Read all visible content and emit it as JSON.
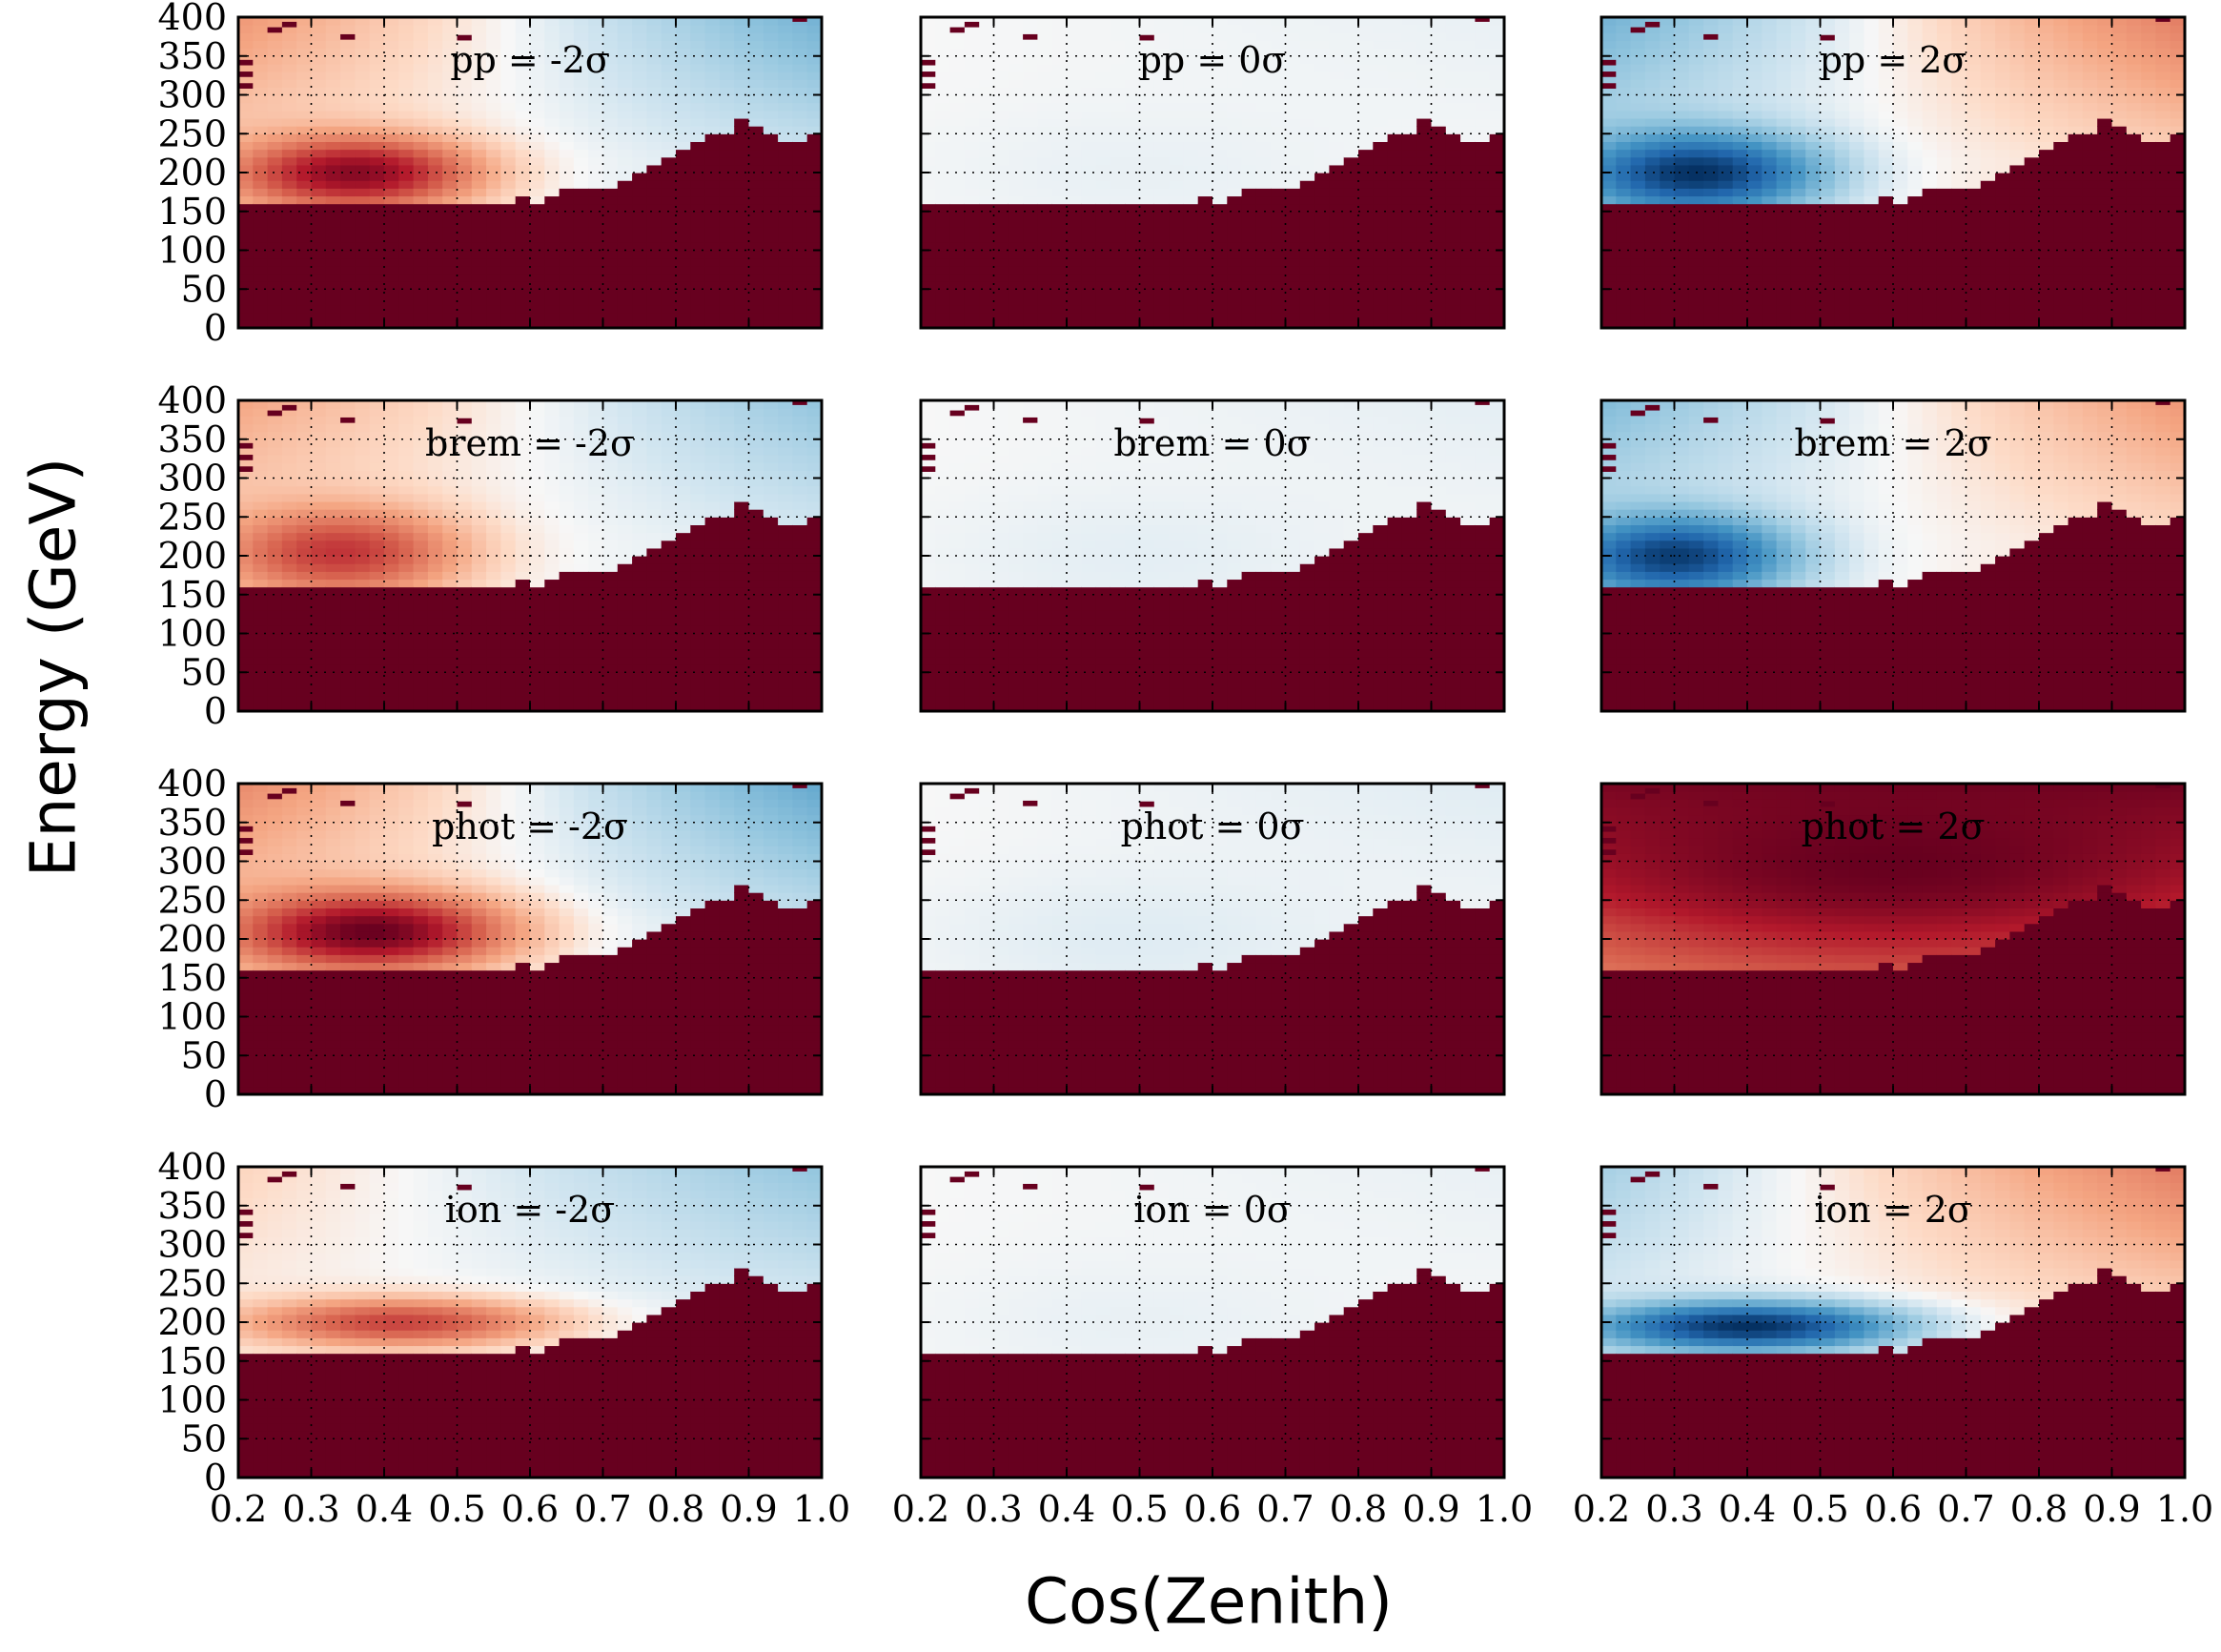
{
  "figure": {
    "xlabel": "Cos(Zenith)",
    "ylabel": "Energy (GeV)"
  },
  "colors": {
    "hist_max": "#67001f",
    "neutral": "#f7f7f7",
    "hist_min": "#053061",
    "grid": "#000000",
    "frame": "#000000"
  },
  "chart_data": {
    "type": "heatmap",
    "grid": true,
    "colormap": "RdBu_r",
    "color_scale": [
      -1,
      1
    ],
    "xlim": [
      0.2,
      1.0
    ],
    "ylim": [
      0,
      400
    ],
    "x_ticks": [
      "0.2",
      "0.3",
      "0.4",
      "0.5",
      "0.6",
      "0.7",
      "0.8",
      "0.9",
      "1.0"
    ],
    "y_ticks": [
      "0",
      "50",
      "100",
      "150",
      "200",
      "250",
      "300",
      "350",
      "400"
    ],
    "n_cos_bins": 40,
    "n_energy_bins": 40,
    "boundary_note": "approximate upper energy (GeV) of the saturated region per cos(zenith) bin",
    "boundary_energy": [
      160,
      160,
      160,
      160,
      160,
      160,
      160,
      160,
      160,
      160,
      160,
      160,
      160,
      160,
      160,
      160,
      160,
      160,
      160,
      170,
      160,
      175,
      180,
      180,
      180,
      180,
      190,
      200,
      210,
      220,
      230,
      240,
      250,
      255,
      270,
      265,
      250,
      245,
      245,
      250
    ],
    "isolated_cells": [
      {
        "cos": 0.21,
        "energy": 340
      },
      {
        "cos": 0.21,
        "energy": 325
      },
      {
        "cos": 0.21,
        "energy": 310
      },
      {
        "cos": 0.25,
        "energy": 382
      },
      {
        "cos": 0.27,
        "energy": 389
      },
      {
        "cos": 0.35,
        "energy": 373
      },
      {
        "cos": 0.51,
        "energy": 372
      },
      {
        "cos": 0.97,
        "energy": 396
      }
    ],
    "panels": [
      {
        "label": "pp = -2σ",
        "peak": 0.9,
        "center": [
          0.36,
          200
        ],
        "spread": [
          0.16,
          45
        ],
        "tail": 0.3,
        "far": -0.35
      },
      {
        "label": "pp = 0σ",
        "peak": -0.03,
        "center": [
          0.5,
          200
        ],
        "spread": [
          0.3,
          90
        ],
        "tail": 0.0,
        "far": -0.03
      },
      {
        "label": "pp = 2σ",
        "peak": -1.0,
        "center": [
          0.33,
          200
        ],
        "spread": [
          0.16,
          50
        ],
        "tail": -0.35,
        "far": 0.4
      },
      {
        "label": "brem = -2σ",
        "peak": 0.65,
        "center": [
          0.34,
          205
        ],
        "spread": [
          0.16,
          55
        ],
        "tail": 0.25,
        "far": -0.25
      },
      {
        "label": "brem = 0σ",
        "peak": -0.04,
        "center": [
          0.5,
          200
        ],
        "spread": [
          0.3,
          90
        ],
        "tail": 0.0,
        "far": -0.04
      },
      {
        "label": "brem = 2σ",
        "peak": -0.95,
        "center": [
          0.3,
          200
        ],
        "spread": [
          0.15,
          50
        ],
        "tail": -0.3,
        "far": 0.3
      },
      {
        "label": "phot = -2σ",
        "peak": 1.0,
        "center": [
          0.38,
          210
        ],
        "spread": [
          0.18,
          48
        ],
        "tail": 0.35,
        "far": -0.4
      },
      {
        "label": "phot = 0σ",
        "peak": -0.05,
        "center": [
          0.5,
          200
        ],
        "spread": [
          0.3,
          90
        ],
        "tail": 0.0,
        "far": -0.05
      },
      {
        "label": "phot = 2σ",
        "peak": 1.0,
        "center": [
          0.6,
          300
        ],
        "spread": [
          0.6,
          150
        ],
        "tail": 0.9,
        "far": 0.95
      },
      {
        "label": "ion = -2σ",
        "peak": 0.6,
        "center": [
          0.42,
          200
        ],
        "spread": [
          0.2,
          30
        ],
        "tail": 0.1,
        "far": -0.25
      },
      {
        "label": "ion = 0σ",
        "peak": -0.03,
        "center": [
          0.5,
          200
        ],
        "spread": [
          0.3,
          90
        ],
        "tail": 0.0,
        "far": -0.03
      },
      {
        "label": "ion = 2σ",
        "peak": -1.0,
        "center": [
          0.4,
          195
        ],
        "spread": [
          0.2,
          30
        ],
        "tail": -0.2,
        "far": 0.4
      }
    ]
  }
}
